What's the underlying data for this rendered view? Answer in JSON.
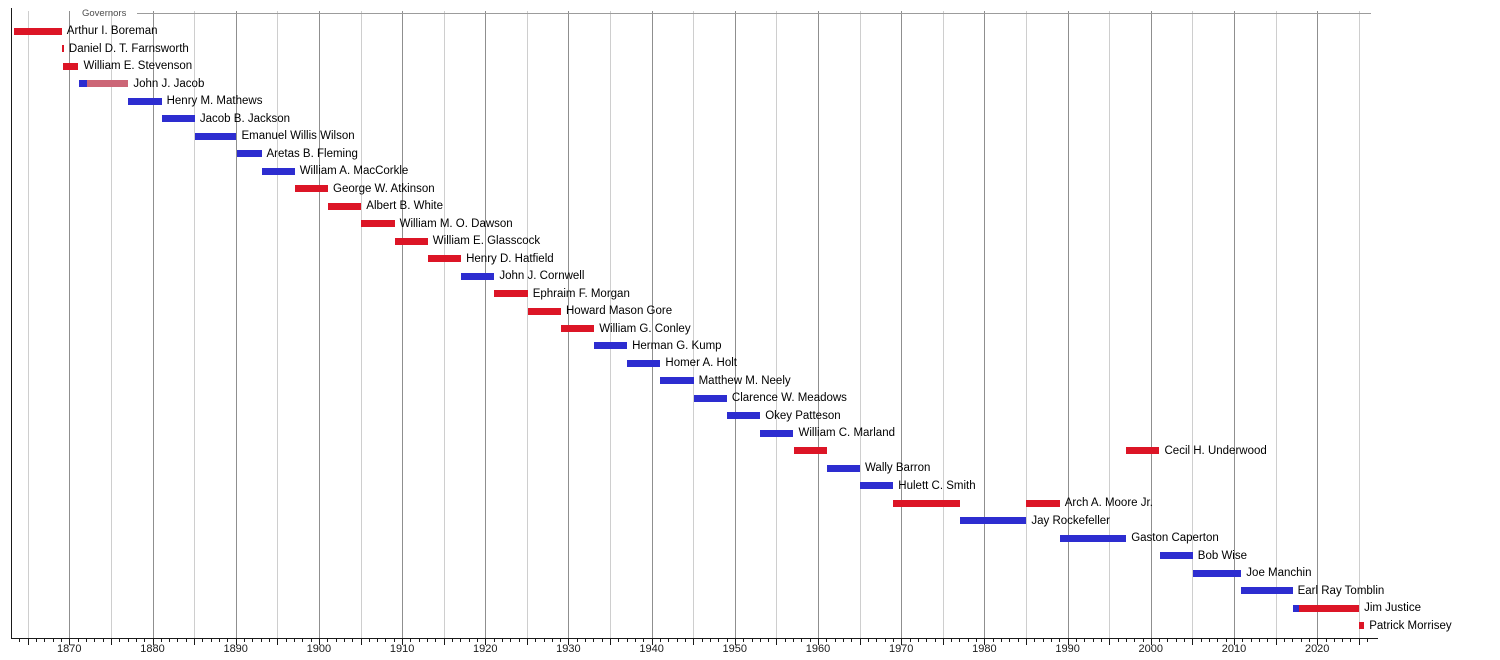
{
  "chart_data": {
    "type": "bar",
    "variant": "gantt-timeline",
    "title": "Governors",
    "x_axis": {
      "range": [
        1863,
        2027
      ],
      "tick_labels": [
        1870,
        1880,
        1890,
        1900,
        1910,
        1920,
        1930,
        1940,
        1950,
        1960,
        1970,
        1980,
        1990,
        2000,
        2010,
        2020
      ],
      "gridlines_every": 5,
      "gridline_years": [
        1865,
        2025
      ],
      "minor_ticks_every": 1,
      "grid": true,
      "legend_position": "none"
    },
    "party_colors": {
      "democrat": "#2d2dd0",
      "republican": "#dc1526",
      "independent": "#cc6677"
    },
    "governors": [
      {
        "name": "Arthur I. Boreman",
        "segments": [
          {
            "start": 1863.3,
            "end": 1869.1,
            "party": "republican"
          }
        ]
      },
      {
        "name": "Daniel D. T. Farnsworth",
        "segments": [
          {
            "start": 1869.1,
            "end": 1869.35,
            "party": "republican"
          }
        ]
      },
      {
        "name": "William E. Stevenson",
        "segments": [
          {
            "start": 1869.2,
            "end": 1871.1,
            "party": "republican"
          }
        ]
      },
      {
        "name": "John J. Jacob",
        "segments": [
          {
            "start": 1871.1,
            "end": 1872.1,
            "party": "democrat"
          },
          {
            "start": 1872.1,
            "end": 1877.1,
            "party": "independent"
          }
        ]
      },
      {
        "name": "Henry M. Mathews",
        "segments": [
          {
            "start": 1877.1,
            "end": 1881.1,
            "party": "democrat"
          }
        ]
      },
      {
        "name": "Jacob B. Jackson",
        "segments": [
          {
            "start": 1881.1,
            "end": 1885.1,
            "party": "democrat"
          }
        ]
      },
      {
        "name": "Emanuel Willis Wilson",
        "segments": [
          {
            "start": 1885.1,
            "end": 1890.1,
            "party": "democrat"
          }
        ]
      },
      {
        "name": "Aretas B. Fleming",
        "segments": [
          {
            "start": 1890.1,
            "end": 1893.1,
            "party": "democrat"
          }
        ]
      },
      {
        "name": "William A. MacCorkle",
        "segments": [
          {
            "start": 1893.1,
            "end": 1897.1,
            "party": "democrat"
          }
        ]
      },
      {
        "name": "George W. Atkinson",
        "segments": [
          {
            "start": 1897.1,
            "end": 1901.1,
            "party": "republican"
          }
        ]
      },
      {
        "name": "Albert B. White",
        "segments": [
          {
            "start": 1901.1,
            "end": 1905.1,
            "party": "republican"
          }
        ]
      },
      {
        "name": "William M. O. Dawson",
        "segments": [
          {
            "start": 1905.1,
            "end": 1909.1,
            "party": "republican"
          }
        ]
      },
      {
        "name": "William E. Glasscock",
        "segments": [
          {
            "start": 1909.1,
            "end": 1913.1,
            "party": "republican"
          }
        ]
      },
      {
        "name": "Henry D. Hatfield",
        "segments": [
          {
            "start": 1913.1,
            "end": 1917.1,
            "party": "republican"
          }
        ]
      },
      {
        "name": "John J. Cornwell",
        "segments": [
          {
            "start": 1917.1,
            "end": 1921.1,
            "party": "democrat"
          }
        ]
      },
      {
        "name": "Ephraim F. Morgan",
        "segments": [
          {
            "start": 1921.1,
            "end": 1925.1,
            "party": "republican"
          }
        ]
      },
      {
        "name": "Howard Mason Gore",
        "segments": [
          {
            "start": 1925.1,
            "end": 1929.1,
            "party": "republican"
          }
        ]
      },
      {
        "name": "William G. Conley",
        "segments": [
          {
            "start": 1929.1,
            "end": 1933.1,
            "party": "republican"
          }
        ]
      },
      {
        "name": "Herman G. Kump",
        "segments": [
          {
            "start": 1933.1,
            "end": 1937.05,
            "party": "democrat"
          }
        ]
      },
      {
        "name": "Homer A. Holt",
        "segments": [
          {
            "start": 1937.05,
            "end": 1941.05,
            "party": "democrat"
          }
        ]
      },
      {
        "name": "Matthew M. Neely",
        "segments": [
          {
            "start": 1941.05,
            "end": 1945.05,
            "party": "democrat"
          }
        ]
      },
      {
        "name": "Clarence W. Meadows",
        "segments": [
          {
            "start": 1945.05,
            "end": 1949.05,
            "party": "democrat"
          }
        ]
      },
      {
        "name": "Okey Patteson",
        "segments": [
          {
            "start": 1949.05,
            "end": 1953.05,
            "party": "democrat"
          }
        ]
      },
      {
        "name": "William C. Marland",
        "segments": [
          {
            "start": 1953.05,
            "end": 1957.05,
            "party": "democrat"
          }
        ]
      },
      {
        "name": "Cecil H. Underwood",
        "segments": [
          {
            "start": 1957.05,
            "end": 1961.05,
            "party": "republican"
          },
          {
            "start": 1997.05,
            "end": 2001.05,
            "party": "republican"
          }
        ]
      },
      {
        "name": "Wally Barron",
        "segments": [
          {
            "start": 1961.05,
            "end": 1965.05,
            "party": "democrat"
          }
        ]
      },
      {
        "name": "Hulett C. Smith",
        "segments": [
          {
            "start": 1965.05,
            "end": 1969.05,
            "party": "democrat"
          }
        ]
      },
      {
        "name": "Arch A. Moore Jr.",
        "segments": [
          {
            "start": 1969.05,
            "end": 1977.05,
            "party": "republican"
          },
          {
            "start": 1985.05,
            "end": 1989.05,
            "party": "republican"
          }
        ]
      },
      {
        "name": "Jay Rockefeller",
        "segments": [
          {
            "start": 1977.05,
            "end": 1985.05,
            "party": "democrat"
          }
        ]
      },
      {
        "name": "Gaston Caperton",
        "segments": [
          {
            "start": 1989.05,
            "end": 1997.05,
            "party": "democrat"
          }
        ]
      },
      {
        "name": "Bob Wise",
        "segments": [
          {
            "start": 2001.05,
            "end": 2005.05,
            "party": "democrat"
          }
        ]
      },
      {
        "name": "Joe Manchin",
        "segments": [
          {
            "start": 2005.05,
            "end": 2010.88,
            "party": "democrat"
          }
        ]
      },
      {
        "name": "Earl Ray Tomblin",
        "segments": [
          {
            "start": 2010.88,
            "end": 2017.05,
            "party": "democrat"
          }
        ]
      },
      {
        "name": "Jim Justice",
        "segments": [
          {
            "start": 2017.05,
            "end": 2017.85,
            "party": "democrat"
          },
          {
            "start": 2017.85,
            "end": 2025.04,
            "party": "republican"
          }
        ]
      },
      {
        "name": "Patrick Morrisey",
        "segments": [
          {
            "start": 2025.04,
            "end": 2025.65,
            "party": "republican"
          }
        ]
      }
    ]
  }
}
